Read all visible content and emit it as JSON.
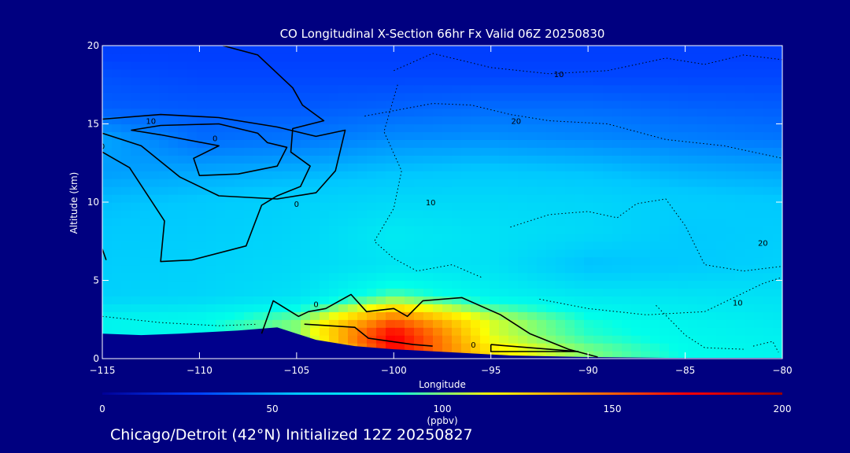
{
  "chart_data": {
    "type": "heatmap",
    "title": "CO Longitudinal X-Section 66hr  Fx Valid 06Z 20250830",
    "xlabel": "Longitude",
    "ylabel": "Altitude (km)",
    "xlim": [
      -115,
      -80
    ],
    "ylim": [
      0,
      20
    ],
    "x_ticks": [
      -115,
      -110,
      -105,
      -100,
      -95,
      -90,
      -85,
      -80
    ],
    "y_ticks": [
      0,
      5,
      10,
      15,
      20
    ],
    "colorbar": {
      "label": "(ppbv)",
      "range": [
        0,
        200
      ],
      "ticks": [
        0,
        50,
        100,
        150,
        200
      ],
      "colors": [
        "#000096",
        "#0040ff",
        "#00c8ff",
        "#00ffea",
        "#ffff00",
        "#ff8000",
        "#ff0000",
        "#960000"
      ]
    },
    "co_field_ppbv": {
      "longitudes": [
        -115,
        -110,
        -105,
        -100,
        -95,
        -90,
        -85,
        -80
      ],
      "altitudes_km": [
        0.5,
        1.5,
        2.5,
        4,
        6,
        8,
        10,
        12,
        14,
        16,
        18,
        19.5
      ],
      "values": [
        [
          80,
          82,
          84,
          170,
          120,
          100,
          85,
          80
        ],
        [
          80,
          84,
          100,
          175,
          110,
          90,
          82,
          78
        ],
        [
          80,
          84,
          100,
          150,
          110,
          88,
          80,
          75
        ],
        [
          62,
          64,
          70,
          95,
          80,
          74,
          72,
          70
        ],
        [
          60,
          62,
          66,
          72,
          70,
          55,
          58,
          62
        ],
        [
          58,
          60,
          64,
          75,
          70,
          66,
          58,
          60
        ],
        [
          55,
          58,
          62,
          66,
          66,
          64,
          60,
          58
        ],
        [
          48,
          50,
          52,
          56,
          58,
          56,
          52,
          50
        ],
        [
          50,
          38,
          40,
          45,
          46,
          44,
          42,
          40
        ],
        [
          35,
          34,
          34,
          36,
          38,
          38,
          36,
          35
        ],
        [
          32,
          30,
          30,
          30,
          30,
          30,
          30,
          30
        ],
        [
          28,
          28,
          28,
          28,
          28,
          28,
          28,
          28
        ]
      ]
    },
    "contours": {
      "solid_labels": [
        "10",
        "0",
        "0",
        "0",
        "0",
        "0"
      ],
      "dotted_labels": [
        "10",
        "20",
        "10",
        "20",
        "10"
      ]
    },
    "terrain_color": "#00008c",
    "footer": "Chicago/Detroit (42°N) Initialized 12Z 20250827"
  }
}
